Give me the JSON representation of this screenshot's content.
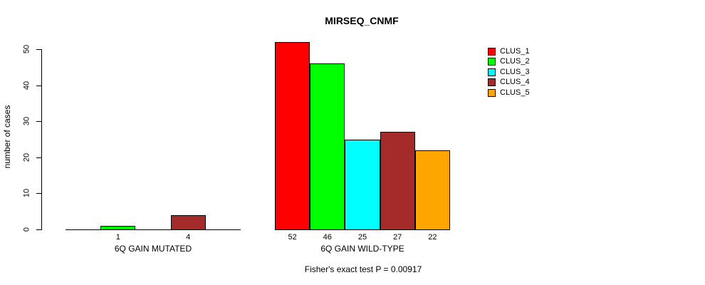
{
  "chart_data": {
    "type": "bar",
    "title": "MIRSEQ_CNMF",
    "ylabel": "number of cases",
    "xlabel": "",
    "ylim": [
      0,
      50
    ],
    "yticks": [
      0,
      10,
      20,
      30,
      40,
      50
    ],
    "grid": false,
    "legend_position": "right",
    "categories": [
      "6Q GAIN MUTATED",
      "6Q GAIN WILD-TYPE"
    ],
    "series": [
      {
        "name": "CLUS_1",
        "color": "#FF0000",
        "values": [
          0,
          52
        ]
      },
      {
        "name": "CLUS_2",
        "color": "#00FF00",
        "values": [
          1,
          46
        ]
      },
      {
        "name": "CLUS_3",
        "color": "#00FFFF",
        "values": [
          0,
          25
        ]
      },
      {
        "name": "CLUS_4",
        "color": "#A52A2A",
        "values": [
          4,
          27
        ]
      },
      {
        "name": "CLUS_5",
        "color": "#FFA500",
        "values": [
          0,
          22
        ]
      }
    ],
    "bar_labels": [
      [
        "",
        "1",
        "",
        "4",
        ""
      ],
      [
        "52",
        "46",
        "25",
        "27",
        "22"
      ]
    ],
    "footnote": "Fisher's exact test P = 0.00917",
    "axis_color": "#000000",
    "text_color": "#000000"
  }
}
